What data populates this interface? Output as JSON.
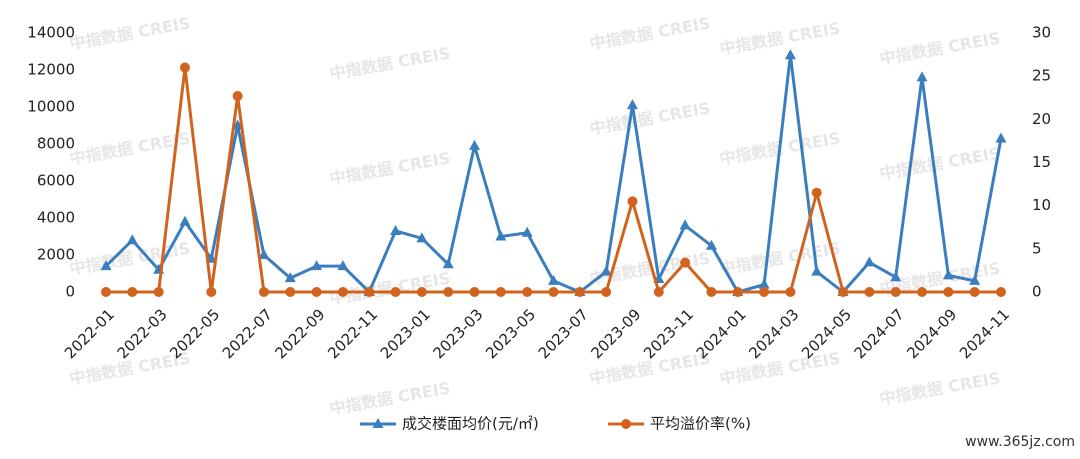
{
  "watermark": "中指数据 CREIS",
  "site": "www.365jz.com",
  "chart_data": {
    "type": "line",
    "categories": [
      "2022-01",
      null,
      "2022-03",
      null,
      "2022-05",
      null,
      "2022-07",
      null,
      "2022-09",
      null,
      "2022-11",
      null,
      "2023-01",
      null,
      "2023-03",
      null,
      "2023-05",
      null,
      "2023-07",
      null,
      "2023-09",
      null,
      "2023-11",
      null,
      "2024-01",
      null,
      "2024-03",
      null,
      "2024-05",
      null,
      "2024-07",
      null,
      "2024-09",
      null,
      "2024-11"
    ],
    "series": [
      {
        "name": "成交楼面均价(元/㎡)",
        "color": "#3a7ebf",
        "marker": "triangle",
        "values": [
          1400,
          2800,
          1200,
          3800,
          1800,
          9000,
          2000,
          750,
          1400,
          1400,
          0,
          3300,
          2900,
          1500,
          7900,
          3000,
          3200,
          600,
          0,
          1100,
          10100,
          700,
          3600,
          2500,
          0,
          400,
          12800,
          1100,
          0,
          1600,
          800,
          11600,
          900,
          600,
          8300
        ]
      },
      {
        "name": "平均溢价率(%)",
        "color": "#d0641f",
        "marker": "circle",
        "axis": "y2",
        "values": [
          0,
          0,
          0,
          26,
          0,
          22.7,
          0,
          0,
          0,
          0,
          0,
          0,
          0,
          0,
          0,
          0,
          0,
          0,
          0,
          0,
          10.5,
          0,
          3.4,
          0,
          0,
          0,
          0,
          11.5,
          0,
          0,
          0,
          0,
          0,
          0,
          0
        ]
      }
    ],
    "ylim": [
      0,
      14000
    ],
    "yticks": [
      0,
      2000,
      4000,
      6000,
      8000,
      10000,
      12000,
      14000
    ],
    "y2lim": [
      0,
      30
    ],
    "y2ticks": [
      0,
      5,
      10,
      15,
      20,
      25,
      30
    ],
    "legend": "bottom"
  }
}
